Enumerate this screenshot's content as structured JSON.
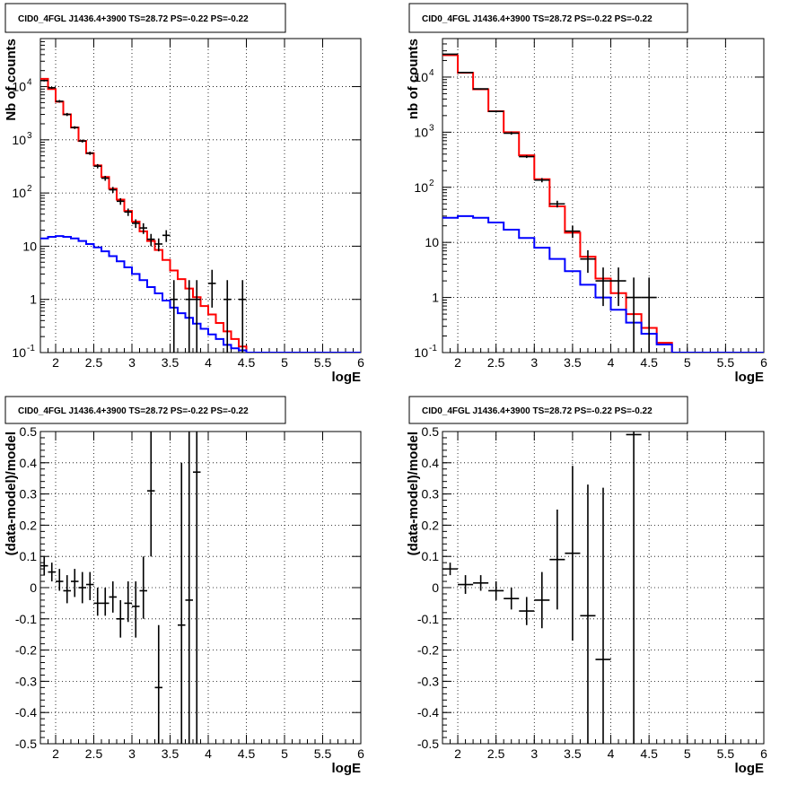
{
  "colors": {
    "data": "#000000",
    "total_model": "#ff0000",
    "background_model": "#0000ff"
  },
  "chart_data": [
    {
      "id": "top-left",
      "type": "line",
      "title": "CID0_4FGL J1436.4+3900 TS=28.72 PS=-0.22 PS=-0.22",
      "xlabel": "logE",
      "ylabel": "Nb of counts",
      "xlim": [
        1.8,
        6.0
      ],
      "ylim": [
        0.1,
        80000
      ],
      "yscale": "log",
      "grid": true,
      "x_ticks": [
        "2",
        "2.5",
        "3",
        "3.5",
        "4",
        "4.5",
        "5",
        "5.5",
        "6"
      ],
      "y_ticks": [
        "10^-1",
        "1",
        "10",
        "10^2",
        "10^3",
        "10^4"
      ],
      "series": [
        {
          "style": "histogram",
          "color": "#ff0000",
          "bins": [
            1.8,
            1.9,
            2.0,
            2.1,
            2.2,
            2.3,
            2.4,
            2.5,
            2.6,
            2.7,
            2.8,
            2.9,
            3.0,
            3.1,
            3.2,
            3.3,
            3.4,
            3.5,
            3.6,
            3.7,
            3.8,
            3.9,
            4.0,
            4.1,
            4.2,
            4.3,
            4.4,
            4.5,
            4.6,
            4.7,
            4.8,
            4.9,
            5.0,
            5.1,
            5.2,
            5.3,
            5.4,
            5.5,
            5.6,
            5.7,
            5.8,
            5.9,
            6.0
          ],
          "values": [
            14000,
            9000,
            5200,
            3000,
            1700,
            950,
            560,
            330,
            200,
            120,
            75,
            46,
            29,
            19,
            12.5,
            8.5,
            5.5,
            3.5,
            2.4,
            1.6,
            1.1,
            0.75,
            0.52,
            0.36,
            0.25,
            0.18,
            0.13,
            0.1,
            0.1,
            0.1,
            0.1,
            0.1,
            0.1,
            0.1,
            0.1,
            0.1,
            0.1,
            0.1,
            0.1,
            0.1,
            0.1,
            0.1
          ]
        },
        {
          "style": "histogram",
          "color": "#0000ff",
          "bins": [
            1.8,
            1.9,
            2.0,
            2.1,
            2.2,
            2.3,
            2.4,
            2.5,
            2.6,
            2.7,
            2.8,
            2.9,
            3.0,
            3.1,
            3.2,
            3.3,
            3.4,
            3.5,
            3.6,
            3.7,
            3.8,
            3.9,
            4.0,
            4.1,
            4.2,
            4.3,
            4.4,
            4.5,
            4.6,
            4.7,
            4.8,
            4.9,
            5.0,
            5.1,
            5.2,
            5.3,
            5.4,
            5.5,
            5.6,
            5.7,
            5.8,
            5.9,
            6.0
          ],
          "values": [
            14,
            15,
            15.5,
            15,
            14,
            12.5,
            11,
            9.5,
            8,
            6.5,
            5.2,
            4,
            3,
            2.3,
            1.7,
            1.3,
            0.95,
            0.7,
            0.55,
            0.45,
            0.35,
            0.28,
            0.22,
            0.18,
            0.14,
            0.12,
            0.11,
            0.1,
            0.1,
            0.1,
            0.1,
            0.1,
            0.1,
            0.1,
            0.1,
            0.1,
            0.1,
            0.1,
            0.1,
            0.1,
            0.1,
            0.1
          ]
        },
        {
          "style": "errorbars",
          "color": "#000000",
          "points": [
            {
              "x": 1.85,
              "xerr": 0.05,
              "y": 13000,
              "ylo": 12500,
              "yhi": 13500
            },
            {
              "x": 1.95,
              "xerr": 0.05,
              "y": 9500,
              "ylo": 9100,
              "yhi": 9900
            },
            {
              "x": 2.05,
              "xerr": 0.05,
              "y": 5300,
              "ylo": 5000,
              "yhi": 5600
            },
            {
              "x": 2.15,
              "xerr": 0.05,
              "y": 3000,
              "ylo": 2800,
              "yhi": 3200
            },
            {
              "x": 2.25,
              "xerr": 0.05,
              "y": 1700,
              "ylo": 1600,
              "yhi": 1800
            },
            {
              "x": 2.35,
              "xerr": 0.05,
              "y": 950,
              "ylo": 890,
              "yhi": 1010
            },
            {
              "x": 2.45,
              "xerr": 0.05,
              "y": 560,
              "ylo": 520,
              "yhi": 600
            },
            {
              "x": 2.55,
              "xerr": 0.05,
              "y": 320,
              "ylo": 290,
              "yhi": 350
            },
            {
              "x": 2.65,
              "xerr": 0.05,
              "y": 190,
              "ylo": 170,
              "yhi": 210
            },
            {
              "x": 2.75,
              "xerr": 0.05,
              "y": 115,
              "ylo": 100,
              "yhi": 130
            },
            {
              "x": 2.85,
              "xerr": 0.05,
              "y": 70,
              "ylo": 60,
              "yhi": 80
            },
            {
              "x": 2.95,
              "xerr": 0.05,
              "y": 44,
              "ylo": 37,
              "yhi": 51
            },
            {
              "x": 3.05,
              "xerr": 0.05,
              "y": 27,
              "ylo": 22,
              "yhi": 32
            },
            {
              "x": 3.15,
              "xerr": 0.05,
              "y": 22,
              "ylo": 17,
              "yhi": 27
            },
            {
              "x": 3.25,
              "xerr": 0.05,
              "y": 13.5,
              "ylo": 10,
              "yhi": 17
            },
            {
              "x": 3.35,
              "xerr": 0.05,
              "y": 11,
              "ylo": 8,
              "yhi": 14
            },
            {
              "x": 3.45,
              "xerr": 0.05,
              "y": 16,
              "ylo": 12,
              "yhi": 20
            },
            {
              "x": 3.55,
              "xerr": 0.05,
              "y": 1,
              "ylo": 0.1,
              "yhi": 2.3
            },
            {
              "x": 3.75,
              "xerr": 0.05,
              "y": 1,
              "ylo": 0.1,
              "yhi": 2.3
            },
            {
              "x": 3.85,
              "xerr": 0.05,
              "y": 1,
              "ylo": 0.1,
              "yhi": 2.3
            },
            {
              "x": 4.05,
              "xerr": 0.05,
              "y": 2,
              "ylo": 0.7,
              "yhi": 3.6
            },
            {
              "x": 4.25,
              "xerr": 0.05,
              "y": 1,
              "ylo": 0.1,
              "yhi": 2.3
            },
            {
              "x": 4.45,
              "xerr": 0.05,
              "y": 1,
              "ylo": 0.1,
              "yhi": 2.3
            }
          ]
        }
      ]
    },
    {
      "id": "top-right",
      "type": "line",
      "title": "CID0_4FGL J1436.4+3900 TS=28.72 PS=-0.22 PS=-0.22",
      "xlabel": "logE",
      "ylabel": "nb of counts",
      "xlim": [
        1.8,
        6.0
      ],
      "ylim": [
        0.1,
        50000
      ],
      "yscale": "log",
      "grid": true,
      "x_ticks": [
        "2",
        "2.5",
        "3",
        "3.5",
        "4",
        "4.5",
        "5",
        "5.5",
        "6"
      ],
      "y_ticks": [
        "10^-1",
        "1",
        "10",
        "10^2",
        "10^3",
        "10^4"
      ],
      "series": [
        {
          "style": "histogram",
          "color": "#ff0000",
          "bins": [
            1.8,
            2.0,
            2.2,
            2.4,
            2.6,
            2.8,
            3.0,
            3.2,
            3.4,
            3.6,
            3.8,
            4.0,
            4.2,
            4.4,
            4.6,
            4.8,
            5.0,
            5.2,
            5.4,
            5.6,
            5.8,
            6.0
          ],
          "values": [
            25000,
            12000,
            6000,
            2400,
            1000,
            380,
            140,
            45,
            15,
            5.5,
            2.2,
            1.2,
            0.5,
            0.28,
            0.15,
            0.1,
            0.1,
            0.1,
            0.1,
            0.1,
            0.1
          ]
        },
        {
          "style": "histogram",
          "color": "#0000ff",
          "bins": [
            1.8,
            2.0,
            2.2,
            2.4,
            2.6,
            2.8,
            3.0,
            3.2,
            3.4,
            3.6,
            3.8,
            4.0,
            4.2,
            4.4,
            4.6,
            4.8,
            5.0,
            5.2,
            5.4,
            5.6,
            5.8,
            6.0
          ],
          "values": [
            28,
            30,
            28,
            23,
            17,
            12,
            8,
            5,
            3,
            1.7,
            1.0,
            0.6,
            0.35,
            0.22,
            0.14,
            0.1,
            0.1,
            0.1,
            0.1,
            0.1,
            0.1
          ]
        },
        {
          "style": "errorbars",
          "color": "#000000",
          "points": [
            {
              "x": 1.9,
              "xerr": 0.1,
              "y": 26000,
              "ylo": 25700,
              "yhi": 26300
            },
            {
              "x": 2.1,
              "xerr": 0.1,
              "y": 12100,
              "ylo": 11900,
              "yhi": 12300
            },
            {
              "x": 2.3,
              "xerr": 0.1,
              "y": 6100,
              "ylo": 5950,
              "yhi": 6250
            },
            {
              "x": 2.5,
              "xerr": 0.1,
              "y": 2380,
              "ylo": 2280,
              "yhi": 2480
            },
            {
              "x": 2.7,
              "xerr": 0.1,
              "y": 960,
              "ylo": 900,
              "yhi": 1020
            },
            {
              "x": 2.9,
              "xerr": 0.1,
              "y": 360,
              "ylo": 340,
              "yhi": 380
            },
            {
              "x": 3.1,
              "xerr": 0.1,
              "y": 135,
              "ylo": 123,
              "yhi": 147
            },
            {
              "x": 3.3,
              "xerr": 0.1,
              "y": 50,
              "ylo": 43,
              "yhi": 57
            },
            {
              "x": 3.5,
              "xerr": 0.1,
              "y": 16,
              "ylo": 12,
              "yhi": 20
            },
            {
              "x": 3.7,
              "xerr": 0.1,
              "y": 5,
              "ylo": 2.8,
              "yhi": 7.2
            },
            {
              "x": 3.9,
              "xerr": 0.1,
              "y": 2,
              "ylo": 0.7,
              "yhi": 3.5
            },
            {
              "x": 4.1,
              "xerr": 0.1,
              "y": 2,
              "ylo": 0.7,
              "yhi": 3.5
            },
            {
              "x": 4.3,
              "xerr": 0.1,
              "y": 1,
              "ylo": 0.1,
              "yhi": 2.3
            },
            {
              "x": 4.5,
              "xerr": 0.1,
              "y": 1,
              "ylo": 0.1,
              "yhi": 2.3
            }
          ]
        }
      ]
    },
    {
      "id": "bottom-left",
      "type": "scatter",
      "title": "CID0_4FGL J1436.4+3900 TS=28.72 PS=-0.22 PS=-0.22",
      "xlabel": "logE",
      "ylabel": "(data-model)/model",
      "xlim": [
        1.8,
        6.0
      ],
      "ylim": [
        -0.5,
        0.5
      ],
      "yscale": "linear",
      "grid": true,
      "x_ticks": [
        "2",
        "2.5",
        "3",
        "3.5",
        "4",
        "4.5",
        "5",
        "5.5",
        "6"
      ],
      "y_ticks": [
        "-0.5",
        "-0.4",
        "-0.3",
        "-0.2",
        "-0.1",
        "0",
        "0.1",
        "0.2",
        "0.3",
        "0.4",
        "0.5"
      ],
      "series": [
        {
          "style": "errorbars",
          "color": "#000000",
          "points": [
            {
              "x": 1.85,
              "xerr": 0.05,
              "y": 0.07,
              "ylo": 0.04,
              "yhi": 0.1
            },
            {
              "x": 1.95,
              "xerr": 0.05,
              "y": 0.05,
              "ylo": 0.02,
              "yhi": 0.08
            },
            {
              "x": 2.05,
              "xerr": 0.05,
              "y": 0.02,
              "ylo": -0.01,
              "yhi": 0.06
            },
            {
              "x": 2.15,
              "xerr": 0.05,
              "y": -0.01,
              "ylo": -0.05,
              "yhi": 0.04
            },
            {
              "x": 2.25,
              "xerr": 0.05,
              "y": 0.02,
              "ylo": -0.03,
              "yhi": 0.06
            },
            {
              "x": 2.35,
              "xerr": 0.05,
              "y": 0.0,
              "ylo": -0.05,
              "yhi": 0.05
            },
            {
              "x": 2.45,
              "xerr": 0.05,
              "y": 0.01,
              "ylo": -0.04,
              "yhi": 0.05
            },
            {
              "x": 2.55,
              "xerr": 0.05,
              "y": -0.05,
              "ylo": -0.09,
              "yhi": 0.0
            },
            {
              "x": 2.65,
              "xerr": 0.05,
              "y": -0.05,
              "ylo": -0.09,
              "yhi": 0.0
            },
            {
              "x": 2.75,
              "xerr": 0.05,
              "y": -0.03,
              "ylo": -0.08,
              "yhi": 0.02
            },
            {
              "x": 2.85,
              "xerr": 0.05,
              "y": -0.1,
              "ylo": -0.16,
              "yhi": -0.04
            },
            {
              "x": 2.95,
              "xerr": 0.05,
              "y": -0.05,
              "ylo": -0.11,
              "yhi": 0.02
            },
            {
              "x": 3.05,
              "xerr": 0.05,
              "y": -0.06,
              "ylo": -0.16,
              "yhi": 0.02
            },
            {
              "x": 3.15,
              "xerr": 0.05,
              "y": -0.01,
              "ylo": -0.1,
              "yhi": 0.1
            },
            {
              "x": 3.25,
              "xerr": 0.05,
              "y": 0.31,
              "ylo": 0.1,
              "yhi": 0.5
            },
            {
              "x": 3.35,
              "xerr": 0.05,
              "y": -0.32,
              "ylo": -0.5,
              "yhi": -0.12
            },
            {
              "x": 3.65,
              "xerr": 0.05,
              "y": -0.12,
              "ylo": -0.5,
              "yhi": 0.4
            },
            {
              "x": 3.75,
              "xerr": 0.05,
              "y": -0.04,
              "ylo": -0.5,
              "yhi": 0.5
            },
            {
              "x": 3.85,
              "xerr": 0.05,
              "y": 0.37,
              "ylo": -0.5,
              "yhi": 0.5
            }
          ]
        }
      ]
    },
    {
      "id": "bottom-right",
      "type": "scatter",
      "title": "CID0_4FGL J1436.4+3900 TS=28.72 PS=-0.22 PS=-0.22",
      "xlabel": "logE",
      "ylabel": "(data-model)/model",
      "xlim": [
        1.8,
        6.0
      ],
      "ylim": [
        -0.5,
        0.5
      ],
      "yscale": "linear",
      "grid": true,
      "x_ticks": [
        "2",
        "2.5",
        "3",
        "3.5",
        "4",
        "4.5",
        "5",
        "5.5",
        "6"
      ],
      "y_ticks": [
        "-0.5",
        "-0.4",
        "-0.3",
        "-0.2",
        "-0.1",
        "0",
        "0.1",
        "0.2",
        "0.3",
        "0.4",
        "0.5"
      ],
      "series": [
        {
          "style": "errorbars",
          "color": "#000000",
          "points": [
            {
              "x": 1.9,
              "xerr": 0.1,
              "y": 0.06,
              "ylo": 0.04,
              "yhi": 0.08
            },
            {
              "x": 2.1,
              "xerr": 0.1,
              "y": 0.01,
              "ylo": -0.02,
              "yhi": 0.04
            },
            {
              "x": 2.3,
              "xerr": 0.1,
              "y": 0.015,
              "ylo": -0.01,
              "yhi": 0.04
            },
            {
              "x": 2.5,
              "xerr": 0.1,
              "y": -0.01,
              "ylo": -0.04,
              "yhi": 0.02
            },
            {
              "x": 2.7,
              "xerr": 0.1,
              "y": -0.035,
              "ylo": -0.07,
              "yhi": 0.0
            },
            {
              "x": 2.9,
              "xerr": 0.1,
              "y": -0.075,
              "ylo": -0.12,
              "yhi": -0.03
            },
            {
              "x": 3.1,
              "xerr": 0.1,
              "y": -0.04,
              "ylo": -0.13,
              "yhi": 0.05
            },
            {
              "x": 3.3,
              "xerr": 0.1,
              "y": 0.09,
              "ylo": -0.07,
              "yhi": 0.25
            },
            {
              "x": 3.5,
              "xerr": 0.1,
              "y": 0.11,
              "ylo": -0.17,
              "yhi": 0.39
            },
            {
              "x": 3.7,
              "xerr": 0.1,
              "y": -0.09,
              "ylo": -0.5,
              "yhi": 0.33
            },
            {
              "x": 3.9,
              "xerr": 0.1,
              "y": -0.23,
              "ylo": -0.5,
              "yhi": 0.32
            },
            {
              "x": 4.3,
              "xerr": 0.1,
              "y": 0.49,
              "ylo": -0.5,
              "yhi": 0.5
            }
          ]
        }
      ]
    }
  ]
}
